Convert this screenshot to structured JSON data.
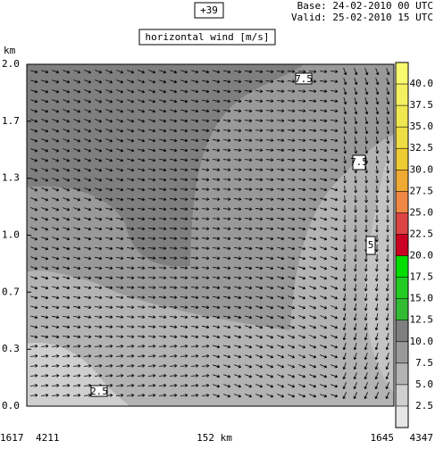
{
  "header": {
    "step": "+39",
    "base": "Base: 24-02-2010  00 UTC",
    "valid": "Valid: 25-02-2010  15 UTC",
    "field": "horizontal wind [m/s]"
  },
  "chart_data": {
    "type": "contour",
    "ylabel": "km",
    "ylim": [
      0,
      2.0
    ],
    "yticks": [
      {
        "value": 0,
        "label": "0.0"
      },
      {
        "value": 0.333,
        "label": "0.3"
      },
      {
        "value": 0.667,
        "label": "0.7"
      },
      {
        "value": 1.0,
        "label": "1.0"
      },
      {
        "value": 1.333,
        "label": "1.3"
      },
      {
        "value": 1.667,
        "label": "1.7"
      },
      {
        "value": 2.0,
        "label": "2.0"
      }
    ],
    "x_labels": {
      "left_id": "1617",
      "left_code": "4211",
      "distance": "152 km",
      "right_id": "1645",
      "right_code": "4347"
    },
    "clim": [
      0,
      42.5
    ],
    "cticks": [
      {
        "value": 2.5,
        "label": "2.5"
      },
      {
        "value": 5,
        "label": "5.0"
      },
      {
        "value": 7.5,
        "label": "7.5"
      },
      {
        "value": 10,
        "label": "10.0"
      },
      {
        "value": 12.5,
        "label": "12.5"
      },
      {
        "value": 15,
        "label": "15.0"
      },
      {
        "value": 17.5,
        "label": "17.5"
      },
      {
        "value": 20,
        "label": "20.0"
      },
      {
        "value": 22.5,
        "label": "22.5"
      },
      {
        "value": 25,
        "label": "25.0"
      },
      {
        "value": 27.5,
        "label": "27.5"
      },
      {
        "value": 30,
        "label": "30.0"
      },
      {
        "value": 32.5,
        "label": "32.5"
      },
      {
        "value": 35,
        "label": "35.0"
      },
      {
        "value": 37.5,
        "label": "37.5"
      },
      {
        "value": 40,
        "label": "40.0"
      }
    ],
    "colors": [
      "#e6e6e6",
      "#cfcfcf",
      "#b3b3b3",
      "#999999",
      "#7f7f7f",
      "#33bb33",
      "#22cc22",
      "#00dd00",
      "#cc0022",
      "#dd4444",
      "#ee8844",
      "#eeaa33",
      "#eecc33",
      "#eedd44",
      "#f0e850",
      "#f5f060",
      "#fafa70"
    ],
    "contour_labels": [
      "7.5",
      "7.5",
      "5",
      "2.5"
    ]
  }
}
